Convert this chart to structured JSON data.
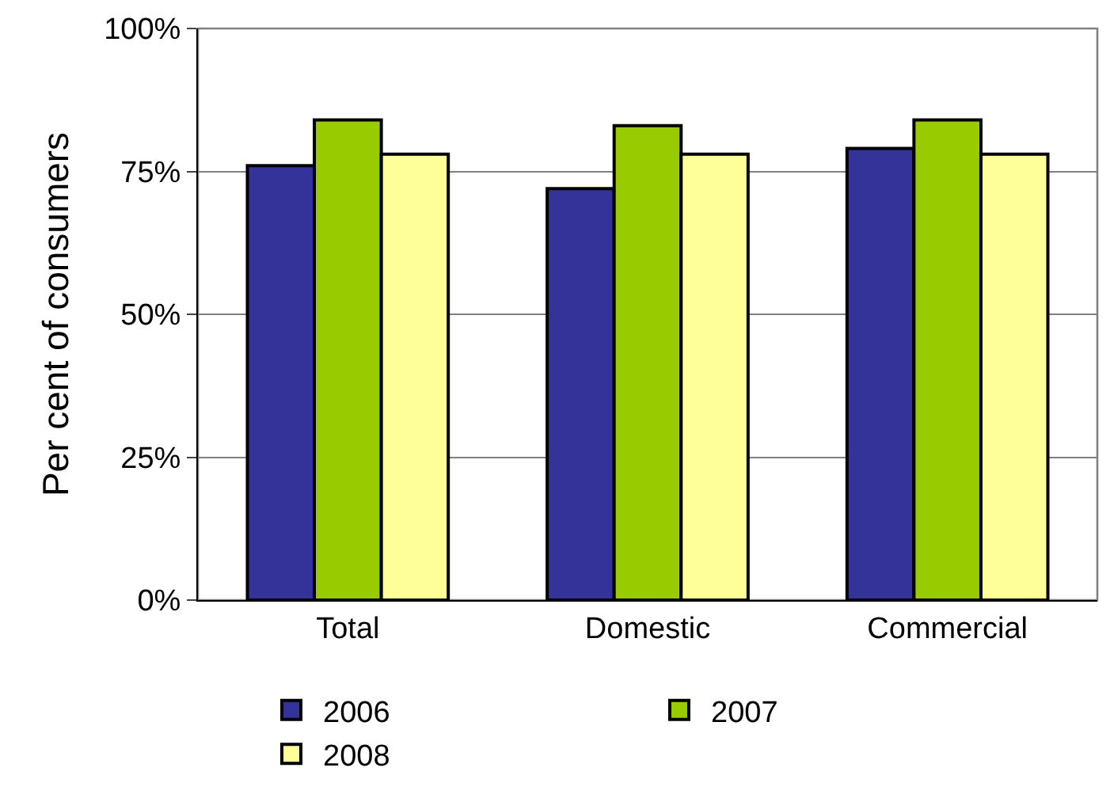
{
  "chart_data": {
    "type": "bar",
    "ylabel": "Per cent of consumers",
    "categories": [
      "Total",
      "Domestic",
      "Commercial"
    ],
    "series": [
      {
        "name": "2006",
        "color": "#333399",
        "values": [
          76,
          72,
          79
        ]
      },
      {
        "name": "2007",
        "color": "#99cc00",
        "values": [
          84,
          83,
          84
        ]
      },
      {
        "name": "2008",
        "color": "#ffff99",
        "values": [
          78,
          78,
          78
        ]
      }
    ],
    "ylim": [
      0,
      100
    ],
    "yticks": [
      {
        "value": 0,
        "label": "0%"
      },
      {
        "value": 25,
        "label": "25%"
      },
      {
        "value": 50,
        "label": "50%"
      },
      {
        "value": 75,
        "label": "75%"
      },
      {
        "value": 100,
        "label": "100%"
      }
    ],
    "grid": "y",
    "legend": "bottom"
  }
}
